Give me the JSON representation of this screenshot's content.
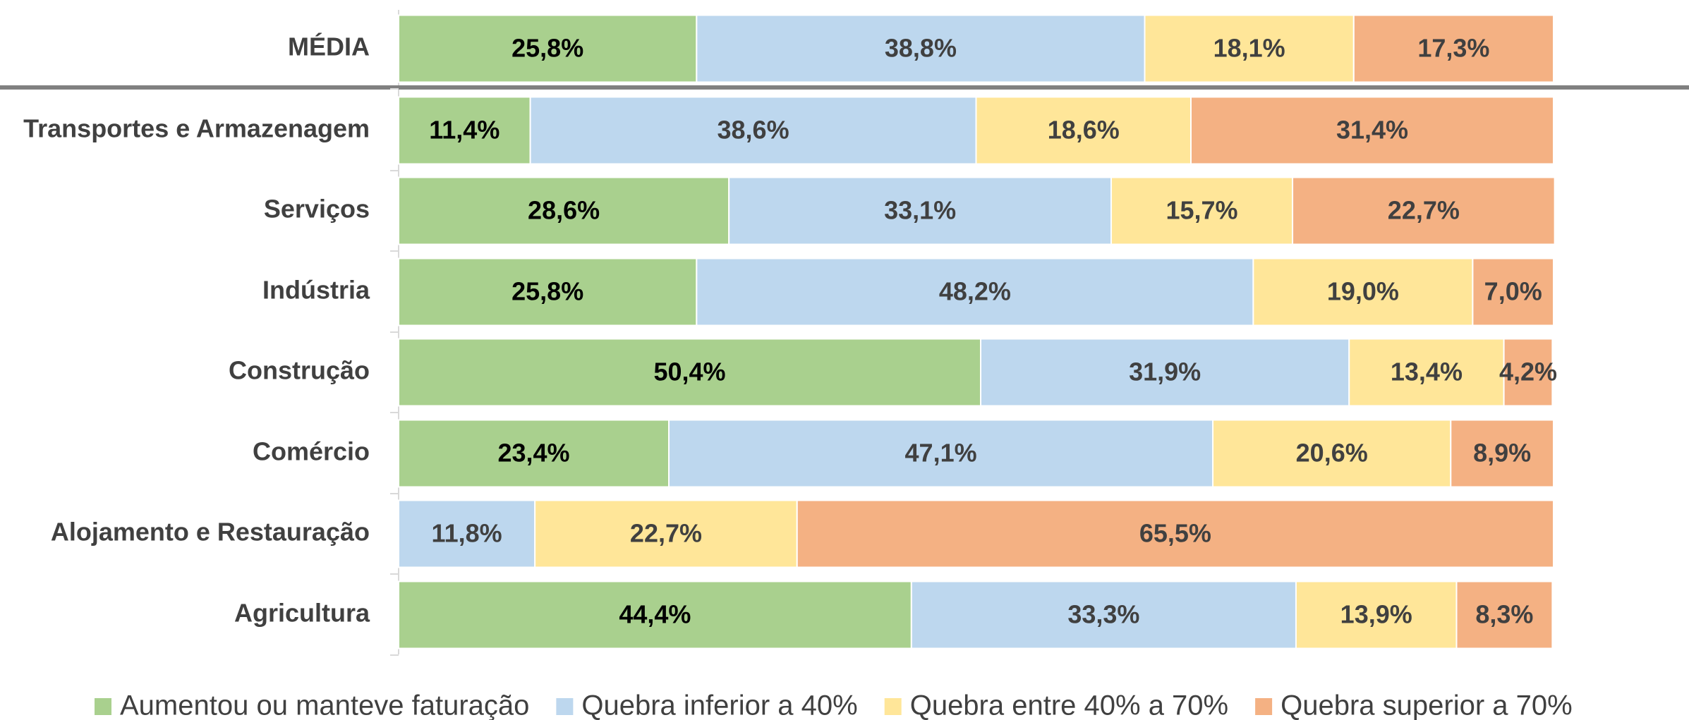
{
  "chart_data": {
    "type": "stacked_barh",
    "categories": [
      "MÉDIA",
      "Transportes e Armazenagem",
      "Serviços",
      "Indústria",
      "Construção",
      "Comércio",
      "Alojamento e Restauração",
      "Agricultura"
    ],
    "xlim": [
      0,
      100
    ],
    "series": [
      {
        "name": "Aumentou ou manteve faturação",
        "color": "#a9d08e",
        "label_color": "#000000",
        "values": [
          25.8,
          11.4,
          28.6,
          25.8,
          50.4,
          23.4,
          null,
          44.4
        ],
        "value_labels": [
          "25,8%",
          "11,4%",
          "28,6%",
          "25,8%",
          "50,4%",
          "23,4%",
          null,
          "44,4%"
        ]
      },
      {
        "name": "Quebra inferior a 40%",
        "color": "#bdd7ee",
        "label_color": "#404040",
        "values": [
          38.8,
          38.6,
          33.1,
          48.2,
          31.9,
          47.1,
          11.8,
          33.3
        ],
        "value_labels": [
          "38,8%",
          "38,6%",
          "33,1%",
          "48,2%",
          "31,9%",
          "47,1%",
          "11,8%",
          "33,3%"
        ]
      },
      {
        "name": "Quebra entre 40% a 70%",
        "color": "#ffe699",
        "label_color": "#404040",
        "values": [
          18.1,
          18.6,
          15.7,
          19.0,
          13.4,
          20.6,
          22.7,
          13.9
        ],
        "value_labels": [
          "18,1%",
          "18,6%",
          "15,7%",
          "19,0%",
          "13,4%",
          "20,6%",
          "22,7%",
          "13,9%"
        ]
      },
      {
        "name": "Quebra superior a 70%",
        "color": "#f4b183",
        "label_color": "#404040",
        "values": [
          17.3,
          31.4,
          22.7,
          7.0,
          4.2,
          8.9,
          65.5,
          8.3
        ],
        "value_labels": [
          "17,3%",
          "31,4%",
          "22,7%",
          "7,0%",
          "4,2%",
          "8,9%",
          "65,5%",
          "8,3%"
        ]
      }
    ]
  }
}
